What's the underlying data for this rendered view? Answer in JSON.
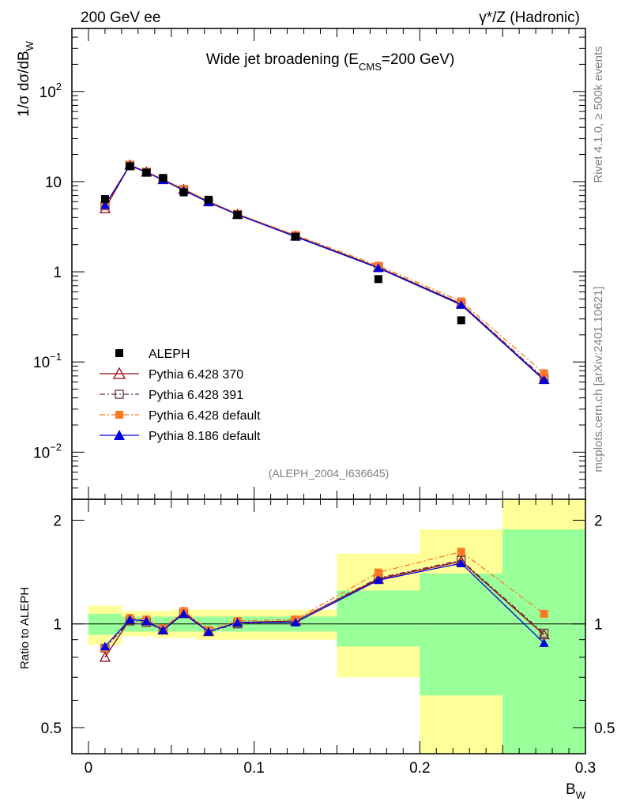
{
  "header": {
    "left": "200 GeV ee",
    "right": "γ*/Z (Hadronic)"
  },
  "side_text": {
    "top": "Rivet 4.1.0, ≥ 500k events",
    "bottom": "mcplots.cern.ch [arXiv:2401.10621]"
  },
  "chart_data": [
    {
      "type": "scatter",
      "panel": "main",
      "title": "Wide jet broadening (E",
      "title_sub": "CMS",
      "title_end": "=200 GeV)",
      "ylabel": "1/σ  dσ/dB",
      "ylabel_sub": "W",
      "xlabel": "B",
      "xlabel_sub": "W",
      "yscale": "log",
      "xlim": [
        -0.01,
        0.3
      ],
      "ylim": [
        0.003,
        500
      ],
      "x_ticks": [
        "0",
        "0.1",
        "0.2",
        "0.3"
      ],
      "x_tick_values": [
        0,
        0.1,
        0.2,
        0.3
      ],
      "y_ticks": [
        {
          "value": 100,
          "base": "10",
          "exp": "2"
        },
        {
          "value": 10,
          "base": "10",
          "exp": ""
        },
        {
          "value": 1,
          "base": "1",
          "exp": ""
        },
        {
          "value": 0.1,
          "base": "10",
          "exp": "−1"
        },
        {
          "value": 0.01,
          "base": "10",
          "exp": "−2"
        }
      ],
      "watermark": "(ALEPH_2004_I636645)",
      "x": [
        0.01,
        0.025,
        0.035,
        0.045,
        0.0575,
        0.0725,
        0.09,
        0.125,
        0.175,
        0.225,
        0.275
      ],
      "series": [
        {
          "name": "ALEPH",
          "color": "#000000",
          "marker": "square",
          "line": "none",
          "values": [
            6.4,
            14.8,
            12.6,
            11.0,
            7.6,
            6.3,
            4.3,
            2.45,
            0.83,
            0.29,
            null
          ]
        },
        {
          "name": "Pythia 6.428 370",
          "color": "#990011",
          "marker": "open-triangle",
          "line": "solid",
          "values": [
            5.0,
            15.3,
            12.8,
            10.5,
            8.2,
            6.0,
            4.35,
            2.5,
            1.12,
            0.44,
            0.064
          ]
        },
        {
          "name": "Pythia 6.428 391",
          "color": "#663344",
          "marker": "open-square",
          "line": "dashdot",
          "values": [
            5.4,
            15.2,
            12.7,
            10.6,
            8.1,
            6.0,
            4.3,
            2.5,
            1.13,
            0.445,
            0.066
          ]
        },
        {
          "name": "Pythia 6.428 default",
          "color": "#ff7722",
          "marker": "square",
          "line": "dashdot",
          "values": [
            5.4,
            15.4,
            12.9,
            10.6,
            8.3,
            6.1,
            4.4,
            2.55,
            1.17,
            0.47,
            0.075
          ]
        },
        {
          "name": "Pythia 8.186 default",
          "color": "#0000dd",
          "marker": "triangle",
          "line": "solid",
          "values": [
            5.5,
            15.1,
            12.7,
            10.4,
            8.0,
            5.9,
            4.3,
            2.45,
            1.1,
            0.43,
            0.063
          ]
        }
      ]
    },
    {
      "type": "scatter",
      "panel": "ratio",
      "ylabel": "Ratio to ALEPH",
      "yscale": "log",
      "ylim": [
        0.42,
        2.3
      ],
      "xlim": [
        -0.01,
        0.3
      ],
      "y_ticks": [
        "0.5",
        "1",
        "2"
      ],
      "y_tick_values": [
        0.5,
        1,
        2
      ],
      "bands": [
        {
          "x0": 0.0,
          "x1": 0.02,
          "yellow": [
            0.87,
            1.13
          ],
          "green": [
            0.93,
            1.07
          ]
        },
        {
          "x0": 0.02,
          "x1": 0.03,
          "yellow": [
            0.92,
            1.09
          ],
          "green": [
            0.95,
            1.05
          ]
        },
        {
          "x0": 0.03,
          "x1": 0.04,
          "yellow": [
            0.92,
            1.09
          ],
          "green": [
            0.95,
            1.05
          ]
        },
        {
          "x0": 0.04,
          "x1": 0.05,
          "yellow": [
            0.91,
            1.09
          ],
          "green": [
            0.95,
            1.05
          ]
        },
        {
          "x0": 0.05,
          "x1": 0.065,
          "yellow": [
            0.91,
            1.1
          ],
          "green": [
            0.95,
            1.05
          ]
        },
        {
          "x0": 0.065,
          "x1": 0.08,
          "yellow": [
            0.9,
            1.1
          ],
          "green": [
            0.95,
            1.05
          ]
        },
        {
          "x0": 0.08,
          "x1": 0.1,
          "yellow": [
            0.9,
            1.1
          ],
          "green": [
            0.95,
            1.05
          ]
        },
        {
          "x0": 0.1,
          "x1": 0.15,
          "yellow": [
            0.9,
            1.1
          ],
          "green": [
            0.95,
            1.05
          ]
        },
        {
          "x0": 0.15,
          "x1": 0.2,
          "yellow": [
            0.7,
            1.6
          ],
          "green": [
            0.86,
            1.25
          ]
        },
        {
          "x0": 0.2,
          "x1": 0.25,
          "yellow": [
            0.3,
            1.88
          ],
          "green": [
            0.62,
            1.4
          ]
        },
        {
          "x0": 0.25,
          "x1": 0.3,
          "yellow": [
            0.1,
            5.0
          ],
          "green": [
            0.3,
            1.88
          ]
        }
      ],
      "x": [
        0.01,
        0.025,
        0.035,
        0.045,
        0.0575,
        0.0725,
        0.09,
        0.125,
        0.175,
        0.225,
        0.275
      ],
      "series": [
        {
          "name": "Pythia 6.428 370",
          "values": [
            0.8,
            1.03,
            1.02,
            0.96,
            1.08,
            0.95,
            1.01,
            1.02,
            1.35,
            1.52,
            0.93
          ]
        },
        {
          "name": "Pythia 6.428 391",
          "values": [
            0.85,
            1.02,
            1.01,
            0.96,
            1.07,
            0.95,
            1.0,
            1.02,
            1.36,
            1.53,
            0.94
          ]
        },
        {
          "name": "Pythia 6.428 default",
          "values": [
            0.85,
            1.04,
            1.03,
            0.97,
            1.09,
            0.96,
            1.02,
            1.03,
            1.41,
            1.62,
            1.07
          ]
        },
        {
          "name": "Pythia 8.186 default",
          "values": [
            0.86,
            1.03,
            1.02,
            0.96,
            1.07,
            0.95,
            1.01,
            1.01,
            1.34,
            1.5,
            0.88
          ]
        }
      ]
    }
  ]
}
